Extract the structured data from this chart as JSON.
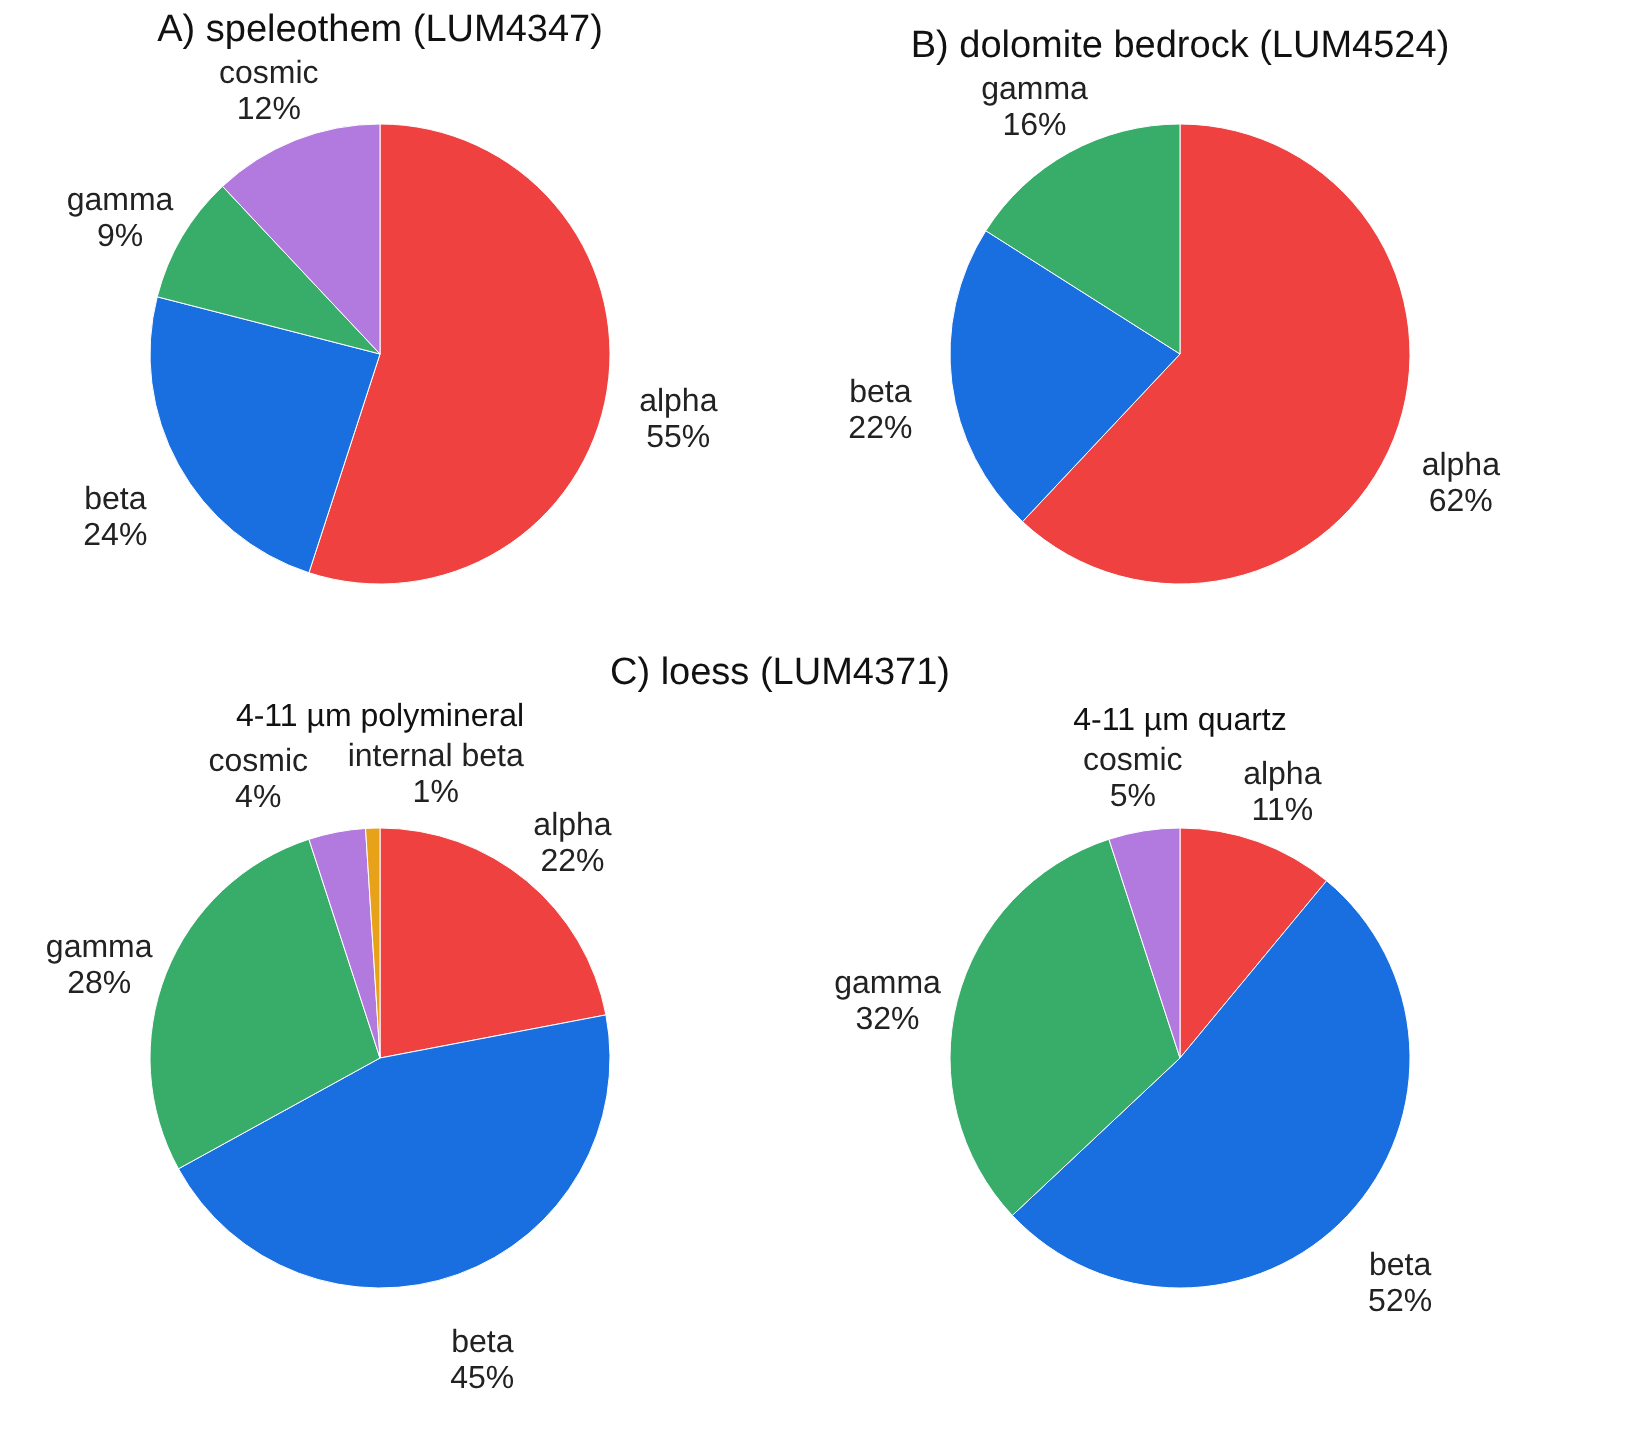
{
  "chart_data": [
    {
      "type": "pie",
      "title": "A) speleothem (LUM4347)",
      "categories": [
        "alpha",
        "beta",
        "gamma",
        "cosmic"
      ],
      "values": [
        55,
        24,
        9,
        12
      ],
      "value_labels": [
        "55%",
        "24%",
        "9%",
        "12%"
      ],
      "colors": [
        "#f04141",
        "#1a6fe0",
        "#38ad6a",
        "#b27ade"
      ]
    },
    {
      "type": "pie",
      "title": "B) dolomite bedrock (LUM4524)",
      "categories": [
        "alpha",
        "beta",
        "gamma"
      ],
      "values": [
        62,
        22,
        16
      ],
      "value_labels": [
        "62%",
        "22%",
        "16%"
      ],
      "colors": [
        "#f04141",
        "#1a6fe0",
        "#38ad6a"
      ]
    },
    {
      "type": "pie",
      "title": "C) loess (LUM4371)",
      "subtitle": "4-11 µm polymineral",
      "categories": [
        "alpha",
        "beta",
        "gamma",
        "cosmic",
        "internal beta"
      ],
      "values": [
        22,
        45,
        28,
        4,
        1
      ],
      "value_labels": [
        "22%",
        "45%",
        "28%",
        "4%",
        "1%"
      ],
      "colors": [
        "#f04141",
        "#1a6fe0",
        "#38ad6a",
        "#b27ade",
        "#e8a21a"
      ]
    },
    {
      "type": "pie",
      "title": "4-11 µm quartz",
      "categories": [
        "alpha",
        "beta",
        "gamma",
        "cosmic"
      ],
      "values": [
        11,
        52,
        32,
        5
      ],
      "value_labels": [
        "11%",
        "52%",
        "32%",
        "5%"
      ],
      "colors": [
        "#f04141",
        "#1a6fe0",
        "#38ad6a",
        "#b27ade"
      ]
    }
  ]
}
